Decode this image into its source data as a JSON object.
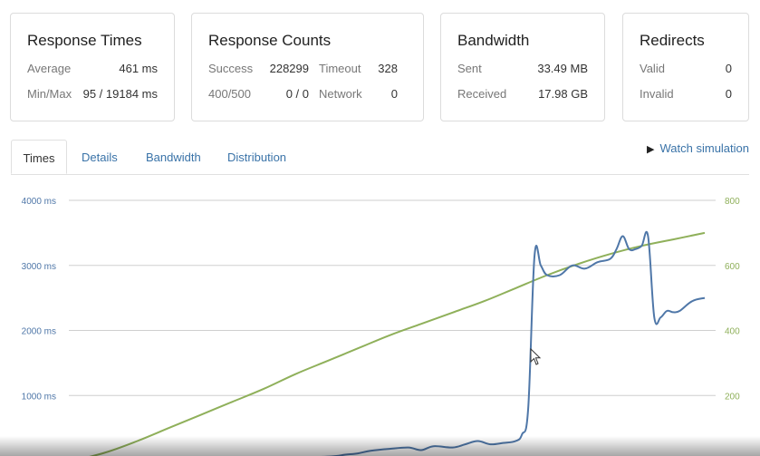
{
  "cards": {
    "response_times": {
      "title": "Response Times",
      "average_label": "Average",
      "average_value": "461 ms",
      "minmax_label": "Min/Max",
      "minmax_value": "95 / 19184 ms"
    },
    "response_counts": {
      "title": "Response Counts",
      "success_label": "Success",
      "success_value": "228299",
      "timeout_label": "Timeout",
      "timeout_value": "328",
      "r400_label": "400/500",
      "r400_value": "0 / 0",
      "network_label": "Network",
      "network_value": "0"
    },
    "bandwidth": {
      "title": "Bandwidth",
      "sent_label": "Sent",
      "sent_value": "33.49 MB",
      "received_label": "Received",
      "received_value": "17.98 GB"
    },
    "redirects": {
      "title": "Redirects",
      "valid_label": "Valid",
      "valid_value": "0",
      "invalid_label": "Invalid",
      "invalid_value": "0"
    }
  },
  "tabs": [
    "Times",
    "Details",
    "Bandwidth",
    "Distribution"
  ],
  "active_tab": "Times",
  "watch_label": "Watch simulation",
  "colors": {
    "response_time": "#4f77a8",
    "clients": "#8fb05a",
    "link": "#3a73a8"
  },
  "chart_data": {
    "type": "line",
    "left_axis": {
      "ticks": [
        "4000 ms",
        "3000 ms",
        "2000 ms",
        "1000 ms"
      ],
      "tick_values": [
        4000,
        3000,
        2000,
        1000
      ],
      "ylim": [
        0,
        4000
      ]
    },
    "right_axis": {
      "ticks": [
        "800",
        "600",
        "400",
        "200"
      ],
      "tick_values": [
        800,
        600,
        400,
        200
      ],
      "ylim": [
        0,
        800
      ]
    },
    "xlim": [
      0,
      100
    ],
    "grid": true,
    "series": [
      {
        "axis": "left",
        "color": "#4f77a8",
        "x": [
          0,
          3,
          10,
          20,
          30,
          40,
          43,
          45,
          47,
          50,
          53,
          55,
          57,
          60,
          62,
          64,
          66,
          68,
          70,
          71,
          72,
          73,
          74,
          75,
          77,
          79,
          81,
          83,
          85,
          86,
          87,
          88,
          89,
          90,
          91,
          92,
          93,
          94,
          95,
          96,
          98,
          100
        ],
        "y": [
          0,
          20,
          20,
          20,
          40,
          60,
          90,
          110,
          150,
          180,
          200,
          160,
          220,
          200,
          250,
          300,
          250,
          270,
          300,
          400,
          800,
          3150,
          3000,
          2850,
          2850,
          3000,
          2950,
          3050,
          3100,
          3250,
          3450,
          3250,
          3250,
          3300,
          3450,
          2200,
          2200,
          2300,
          2280,
          2300,
          2450,
          2500
        ]
      },
      {
        "axis": "right",
        "color": "#8fb05a",
        "x": [
          0,
          5,
          10,
          15,
          20,
          25,
          30,
          35,
          40,
          45,
          50,
          55,
          60,
          65,
          70,
          75,
          80,
          85,
          90,
          95,
          100
        ],
        "y": [
          0,
          25,
          60,
          100,
          140,
          180,
          220,
          265,
          305,
          345,
          385,
          420,
          455,
          490,
          530,
          570,
          605,
          635,
          660,
          680,
          700
        ]
      }
    ]
  }
}
